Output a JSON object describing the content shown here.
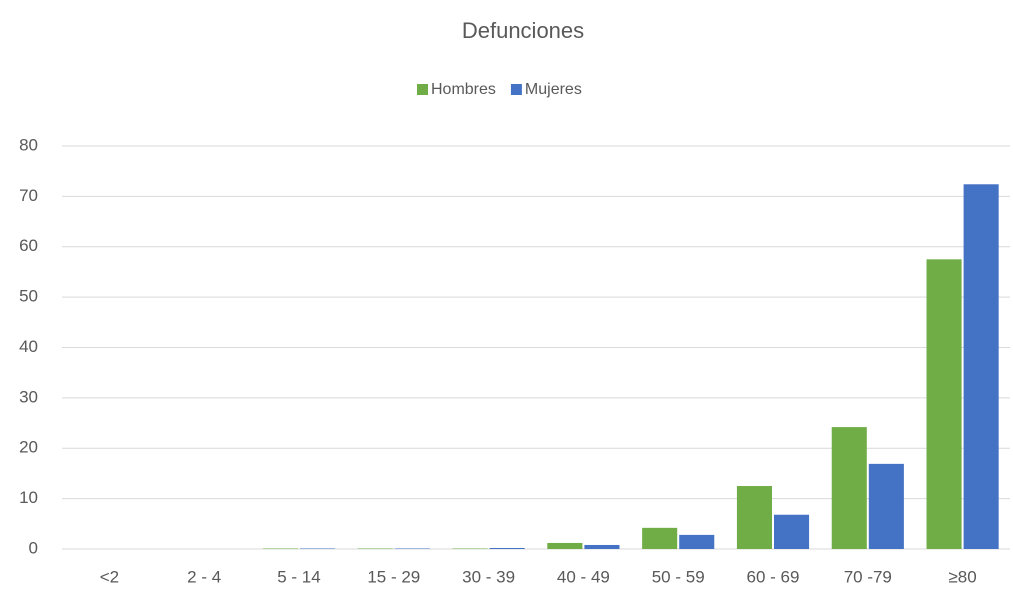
{
  "chart_data": {
    "type": "bar",
    "title": "Defunciones",
    "categories": [
      "<2",
      "2 - 4",
      "5 - 14",
      "15 - 29",
      "30 - 39",
      "40 - 49",
      "50 - 59",
      "60 - 69",
      "70 -79",
      "≥80"
    ],
    "series": [
      {
        "name": "Hombres",
        "color": "#70ad47",
        "values": [
          0,
          0,
          0.1,
          0.1,
          0.1,
          1.2,
          4.2,
          12.5,
          24.2,
          57.5
        ]
      },
      {
        "name": "Mujeres",
        "color": "#4472c4",
        "values": [
          0,
          0,
          0.1,
          0.1,
          0.2,
          0.8,
          2.8,
          6.8,
          16.9,
          72.4
        ]
      }
    ],
    "ylim": [
      0,
      80
    ],
    "yticks": [
      0,
      10,
      20,
      30,
      40,
      50,
      60,
      70,
      80
    ],
    "grid": true,
    "legend": "top"
  }
}
